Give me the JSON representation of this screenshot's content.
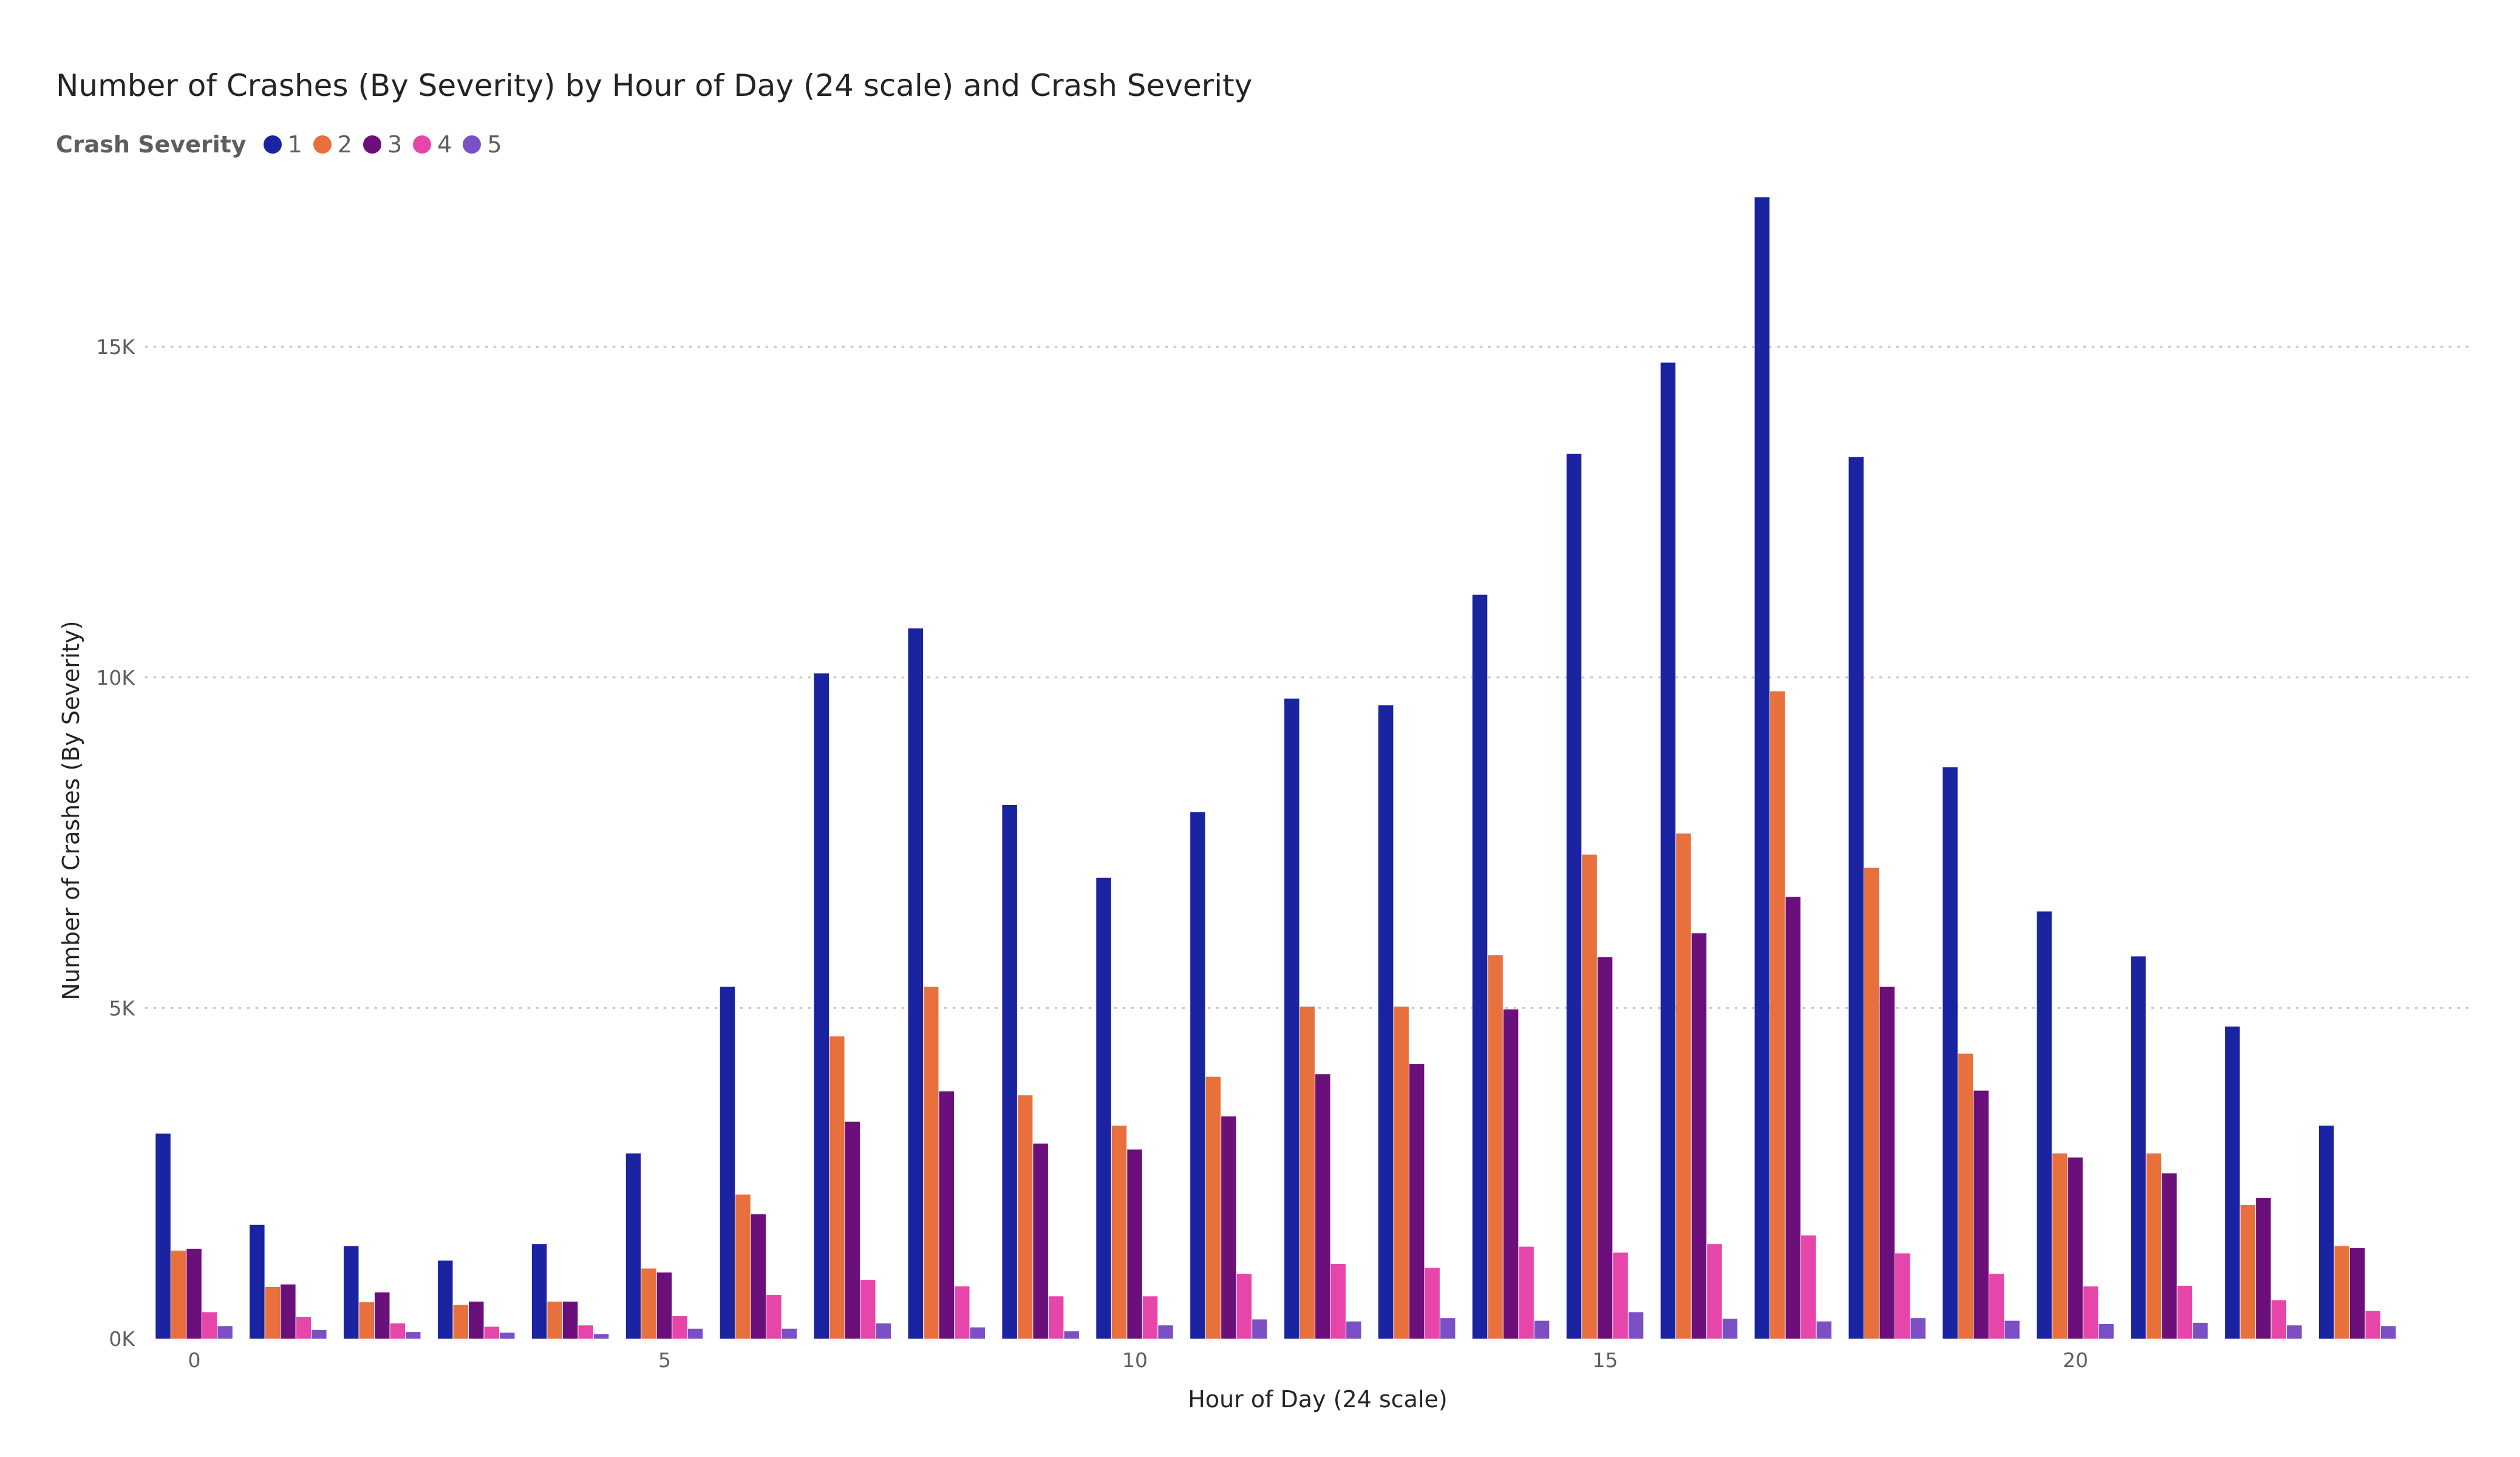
{
  "chart_data": {
    "type": "bar",
    "title": "Number of Crashes (By Severity) by Hour of Day (24 scale) and Crash Severity",
    "xlabel": "Hour of Day (24 scale)",
    "ylabel": "Number of Crashes (By Severity)",
    "legend_title": "Crash Severity",
    "legend_position": "top-left",
    "grid": true,
    "ylim": [
      0,
      17500
    ],
    "y_ticks": [
      {
        "value": 0,
        "label": "0K"
      },
      {
        "value": 5000,
        "label": "5K"
      },
      {
        "value": 10000,
        "label": "10K"
      },
      {
        "value": 15000,
        "label": "15K"
      }
    ],
    "x_ticks": [
      {
        "value": 0,
        "label": "0"
      },
      {
        "value": 5,
        "label": "5"
      },
      {
        "value": 10,
        "label": "10"
      },
      {
        "value": 15,
        "label": "15"
      },
      {
        "value": 20,
        "label": "20"
      }
    ],
    "categories": [
      0,
      1,
      2,
      3,
      4,
      5,
      6,
      7,
      8,
      9,
      10,
      11,
      12,
      13,
      14,
      15,
      16,
      17,
      18,
      19,
      20,
      21,
      22,
      23
    ],
    "series": [
      {
        "name": "1",
        "color": "#1a23a0",
        "values": [
          3100,
          1720,
          1400,
          1180,
          1430,
          2800,
          5320,
          10060,
          10740,
          8070,
          6970,
          7960,
          9680,
          9580,
          11250,
          13380,
          14760,
          17260,
          13330,
          8640,
          6460,
          5780,
          4720,
          3220
        ]
      },
      {
        "name": "2",
        "color": "#e8703d",
        "values": [
          1330,
          780,
          550,
          510,
          560,
          1060,
          2180,
          4570,
          5320,
          3680,
          3220,
          3960,
          5020,
          5020,
          5800,
          7320,
          7640,
          9790,
          7120,
          4310,
          2800,
          2800,
          2020,
          1400
        ]
      },
      {
        "name": "3",
        "color": "#6b0f7a",
        "values": [
          1360,
          820,
          700,
          560,
          560,
          1000,
          1880,
          3280,
          3740,
          2950,
          2860,
          3360,
          4000,
          4150,
          4980,
          5770,
          6130,
          6680,
          5320,
          3750,
          2740,
          2500,
          2130,
          1370
        ]
      },
      {
        "name": "4",
        "color": "#e646aa",
        "values": [
          400,
          330,
          230,
          180,
          200,
          340,
          660,
          890,
          790,
          640,
          640,
          980,
          1130,
          1070,
          1390,
          1300,
          1430,
          1560,
          1290,
          980,
          790,
          800,
          580,
          420
        ]
      },
      {
        "name": "5",
        "color": "#7a50c4",
        "values": [
          190,
          130,
          100,
          90,
          70,
          150,
          150,
          230,
          170,
          110,
          200,
          290,
          260,
          310,
          270,
          400,
          300,
          260,
          310,
          270,
          220,
          240,
          200,
          190
        ]
      }
    ]
  }
}
